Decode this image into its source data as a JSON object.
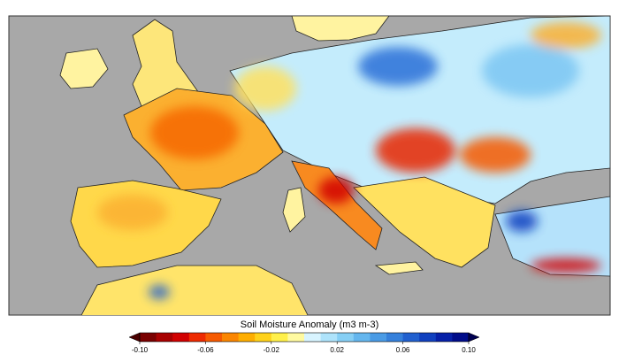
{
  "colorbar": {
    "label": "Soil Moisture Anomaly (m3 m-3)",
    "range": [
      -0.1,
      0.1
    ],
    "ticks": [
      {
        "value": -0.1,
        "label": "-0.10"
      },
      -0.06,
      -0.02,
      0.02,
      0.06,
      {
        "value": 0.1,
        "label": "0.10"
      }
    ],
    "colors": [
      "#7a0000",
      "#a80000",
      "#d10000",
      "#ee2a00",
      "#f65a00",
      "#fb8600",
      "#feae00",
      "#ffd21a",
      "#fff04a",
      "#fffaa0",
      "#d8f4ff",
      "#aee3fb",
      "#86cff5",
      "#64b6ee",
      "#4a9be5",
      "#3580db",
      "#2160cf",
      "#1040bf",
      "#0620a8",
      "#000c8a"
    ]
  }
}
